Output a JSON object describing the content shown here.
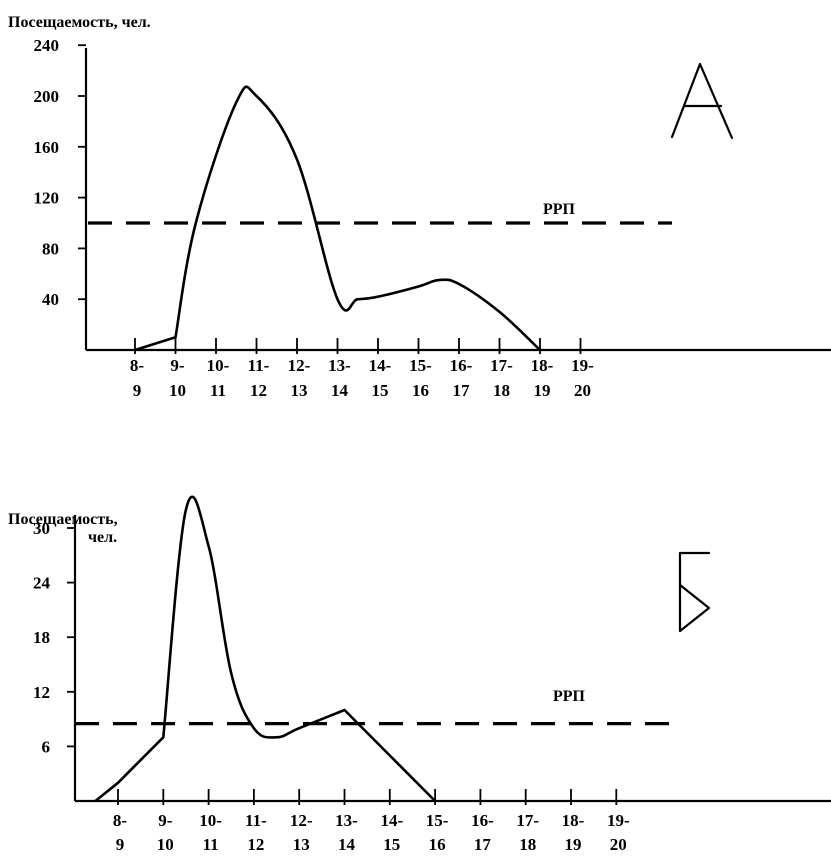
{
  "chart_data": [
    {
      "type": "line",
      "panel_letter": "А",
      "ylabel": "Посещаемость, чел.",
      "y_ticks": [
        40,
        80,
        120,
        160,
        200,
        240
      ],
      "ylim": [
        0,
        240
      ],
      "x_ticks_top": [
        "8-",
        "9-",
        "10-",
        "11-",
        "12-",
        "13-",
        "14-",
        "15-",
        "16-",
        "17-",
        "18-",
        "19-"
      ],
      "x_ticks_bottom": [
        "9",
        "10",
        "11",
        "12",
        "13",
        "14",
        "15",
        "16",
        "17",
        "18",
        "19",
        "20"
      ],
      "series": [
        {
          "x": [
            "8:00",
            "9:00",
            "9:30",
            "10:30",
            "11:00",
            "12:00",
            "13:00",
            "13:30",
            "14:00",
            "15:00",
            "15:30",
            "16:00",
            "17:00",
            "18:00"
          ],
          "values": [
            0,
            10,
            100,
            195,
            200,
            150,
            40,
            40,
            42,
            50,
            55,
            52,
            30,
            0
          ]
        }
      ],
      "reference_line": {
        "label": "РРП",
        "value": 100,
        "style": "dashed"
      },
      "grid": false
    },
    {
      "type": "line",
      "panel_letter": "Б",
      "ylabel": "Посещаемость,",
      "ylabel_unit": "чел.",
      "y_ticks": [
        6,
        12,
        18,
        24,
        30
      ],
      "ylim": [
        0,
        32
      ],
      "x_ticks_top": [
        "8-",
        "9-",
        "10-",
        "11-",
        "12-",
        "13-",
        "14-",
        "15-",
        "16-",
        "17-",
        "18-",
        "19-"
      ],
      "x_ticks_bottom": [
        "9",
        "10",
        "11",
        "12",
        "13",
        "14",
        "15",
        "16",
        "17",
        "18",
        "19",
        "20"
      ],
      "series": [
        {
          "x": [
            "7:30",
            "8:00",
            "9:00",
            "9:30",
            "10:00",
            "10:30",
            "11:00",
            "11:30",
            "12:00",
            "13:00",
            "14:00",
            "15:00"
          ],
          "values": [
            0,
            2,
            7,
            32,
            28,
            14,
            8,
            7,
            8,
            10,
            5,
            0
          ]
        }
      ],
      "reference_line": {
        "label": "РРП",
        "value": 8.5,
        "style": "dashed"
      },
      "grid": false
    }
  ]
}
